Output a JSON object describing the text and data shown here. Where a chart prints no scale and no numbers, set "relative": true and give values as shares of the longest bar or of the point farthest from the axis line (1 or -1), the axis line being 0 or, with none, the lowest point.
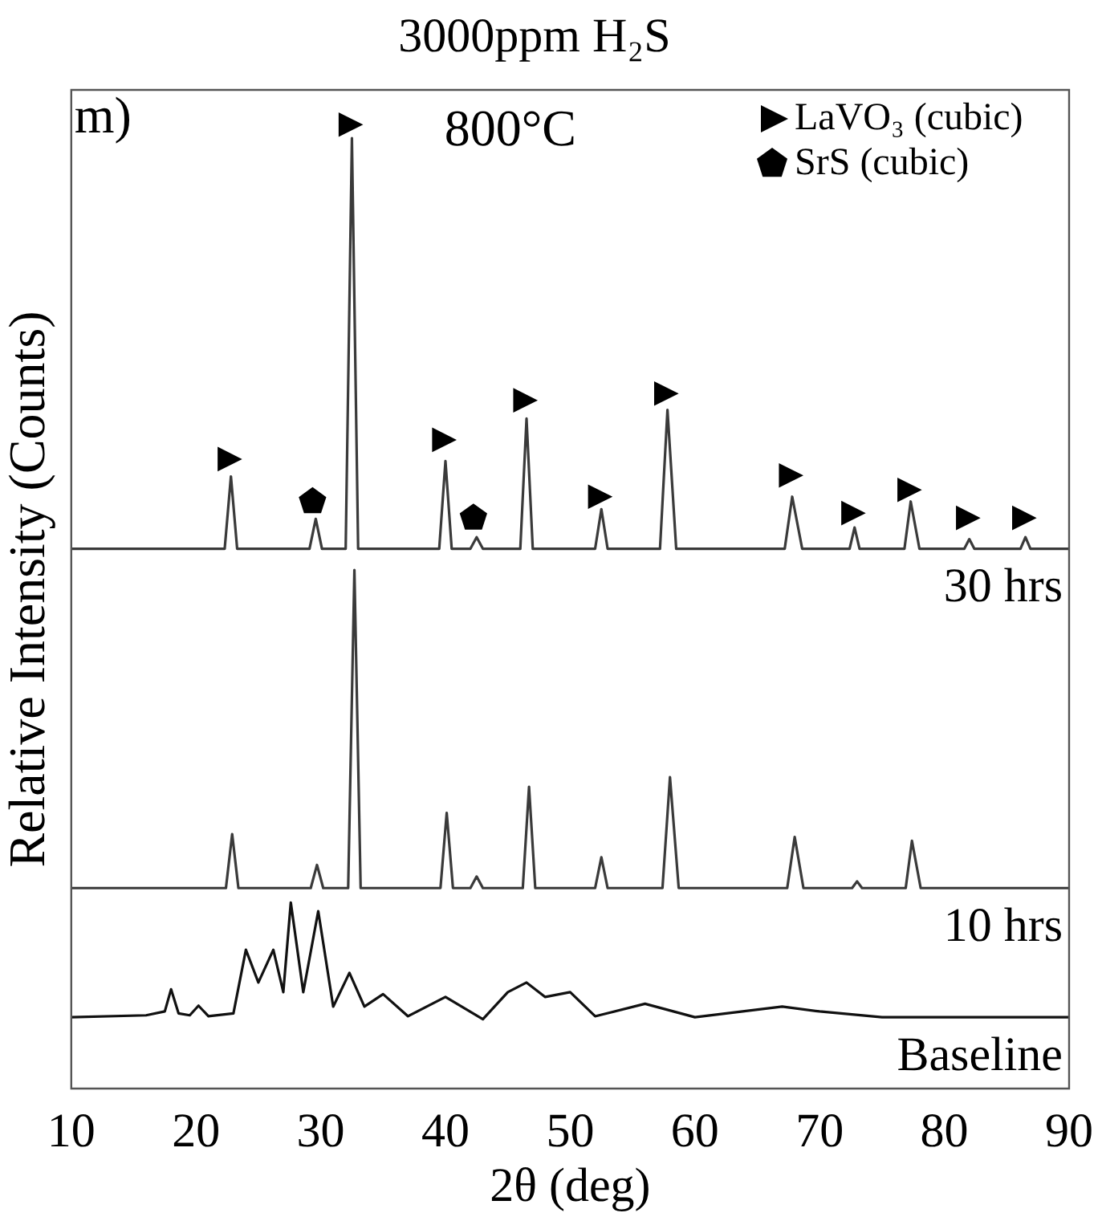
{
  "chart_data": {
    "type": "line",
    "title": "3000ppm H₂S",
    "xlabel": "2θ (deg)",
    "ylabel": "Relative Intensity (Counts)",
    "relative": true,
    "xlim": [
      10,
      90
    ],
    "xticks": [
      10,
      20,
      30,
      40,
      50,
      60,
      70,
      80,
      90
    ],
    "grid": false,
    "legend": "top right",
    "marker": "none",
    "annotations": [
      "m)",
      "800°C"
    ],
    "series": [
      {
        "name": "30 hrs",
        "color": "#3a3a3a",
        "x": [
          10,
          20,
          22.3,
          22.8,
          23.3,
          29.1,
          29.6,
          30.1,
          32.0,
          32.5,
          33.0,
          39.5,
          40.0,
          40.5,
          42.0,
          42.5,
          43.0,
          46.0,
          46.5,
          47.0,
          52.0,
          52.5,
          53.0,
          57.2,
          57.8,
          58.5,
          67.2,
          67.8,
          68.6,
          72.4,
          72.8,
          73.2,
          76.8,
          77.3,
          78.0,
          81.6,
          82.0,
          82.4,
          86.1,
          86.5,
          86.9,
          90
        ],
        "values": [
          0.56,
          0.56,
          0.56,
          0.635,
          0.56,
          0.56,
          0.591,
          0.56,
          0.56,
          0.986,
          0.56,
          0.56,
          0.651,
          0.56,
          0.56,
          0.572,
          0.56,
          0.56,
          0.695,
          0.56,
          0.56,
          0.601,
          0.56,
          0.56,
          0.704,
          0.56,
          0.56,
          0.614,
          0.56,
          0.56,
          0.582,
          0.56,
          0.56,
          0.609,
          0.56,
          0.56,
          0.57,
          0.56,
          0.56,
          0.572,
          0.56,
          0.56
        ]
      },
      {
        "name": "10 hrs",
        "color": "#3a3a3a",
        "x": [
          10,
          20,
          22.4,
          22.9,
          23.4,
          29.2,
          29.7,
          30.2,
          32.2,
          32.7,
          33.2,
          39.6,
          40.1,
          40.6,
          42.0,
          42.5,
          43.0,
          46.2,
          46.7,
          47.2,
          52.0,
          52.5,
          53.0,
          57.4,
          58.0,
          58.7,
          67.4,
          68.0,
          68.7,
          72.6,
          73.0,
          73.4,
          76.9,
          77.4,
          78.1,
          90
        ],
        "values": [
          0.208,
          0.208,
          0.208,
          0.264,
          0.208,
          0.208,
          0.232,
          0.208,
          0.208,
          0.538,
          0.208,
          0.208,
          0.286,
          0.208,
          0.208,
          0.22,
          0.208,
          0.208,
          0.313,
          0.208,
          0.208,
          0.24,
          0.208,
          0.208,
          0.323,
          0.208,
          0.208,
          0.261,
          0.208,
          0.208,
          0.215,
          0.208,
          0.208,
          0.257,
          0.208,
          0.208
        ]
      },
      {
        "name": "Baseline",
        "color": "#111111",
        "x": [
          10,
          16,
          17.5,
          18,
          18.6,
          19.5,
          20.2,
          21,
          23,
          24,
          25,
          26.2,
          27,
          27.6,
          28.6,
          29.8,
          31,
          32.3,
          33.5,
          35,
          37,
          40,
          43,
          45,
          46.5,
          48,
          50,
          52,
          56,
          60,
          67,
          70,
          75,
          90
        ],
        "values": [
          0.074,
          0.076,
          0.08,
          0.103,
          0.078,
          0.076,
          0.086,
          0.075,
          0.078,
          0.144,
          0.11,
          0.144,
          0.1,
          0.193,
          0.1,
          0.184,
          0.085,
          0.12,
          0.085,
          0.098,
          0.075,
          0.095,
          0.072,
          0.1,
          0.11,
          0.095,
          0.1,
          0.075,
          0.088,
          0.074,
          0.085,
          0.08,
          0.074,
          0.074
        ]
      },
      {
        "name": "LaVO₃ (cubic)",
        "type": "scatter",
        "marker": "triangle",
        "color": "#000000",
        "x": [
          22.8,
          32.5,
          40.0,
          46.5,
          52.5,
          57.8,
          67.8,
          72.8,
          77.3,
          82.0,
          86.5
        ],
        "values": [
          0.653,
          1.0,
          0.673,
          0.714,
          0.614,
          0.721,
          0.636,
          0.597,
          0.621,
          0.592,
          0.592
        ]
      },
      {
        "name": "SrS (cubic)",
        "type": "scatter",
        "color": "#000000",
        "x": [
          29.6,
          42.5
        ],
        "values": [
          0.609,
          0.592
        ]
      }
    ]
  }
}
